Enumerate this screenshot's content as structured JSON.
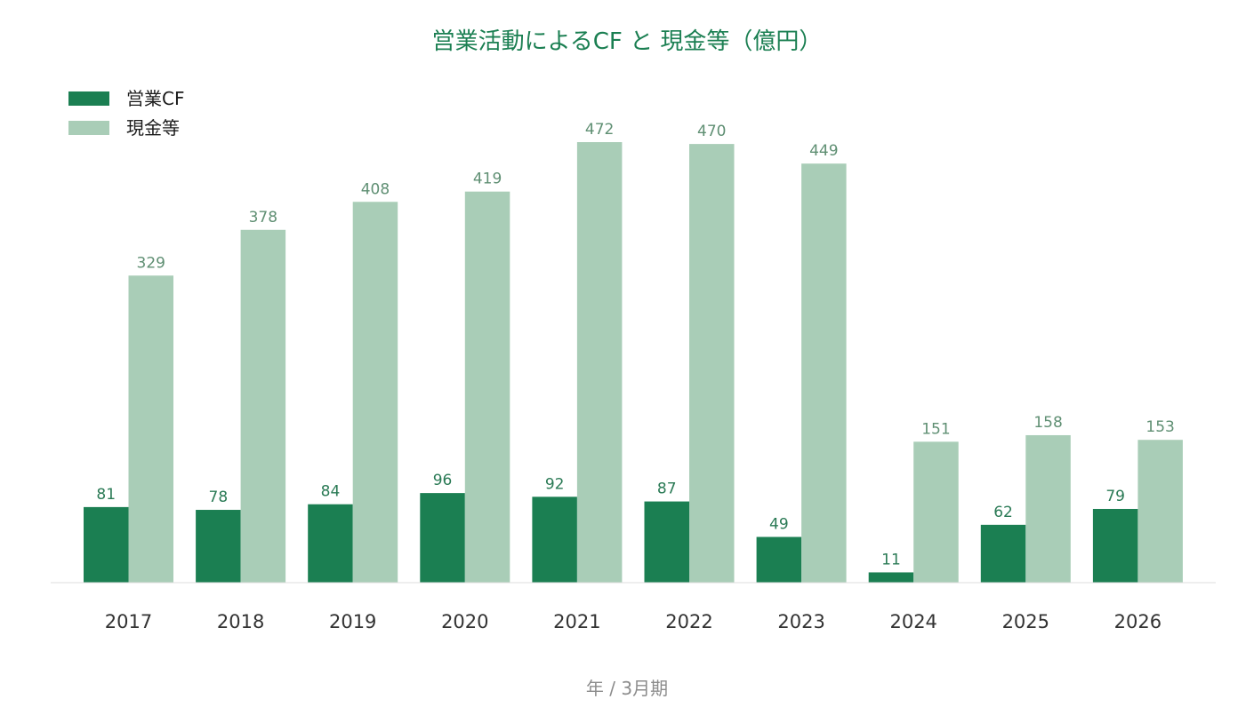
{
  "chart_data": {
    "type": "bar",
    "title": "営業活動によるCF と 現金等（億円）",
    "xlabel": "年 / 3月期",
    "ylabel": "",
    "categories": [
      "2017",
      "2018",
      "2019",
      "2020",
      "2021",
      "2022",
      "2023",
      "2024",
      "2025",
      "2026"
    ],
    "series": [
      {
        "name": "営業CF",
        "color": "#1b7f52",
        "label_color": "#2a7a55",
        "values": [
          81,
          78,
          84,
          96,
          92,
          87,
          49,
          11,
          62,
          79
        ]
      },
      {
        "name": "現金等",
        "color": "#a9cdb7",
        "label_color": "#5f8f73",
        "values": [
          329,
          378,
          408,
          419,
          472,
          470,
          449,
          151,
          158,
          153
        ]
      }
    ],
    "ylim": [
      0,
      472
    ],
    "grid": false,
    "legend": "top-left",
    "data_labels": true
  }
}
